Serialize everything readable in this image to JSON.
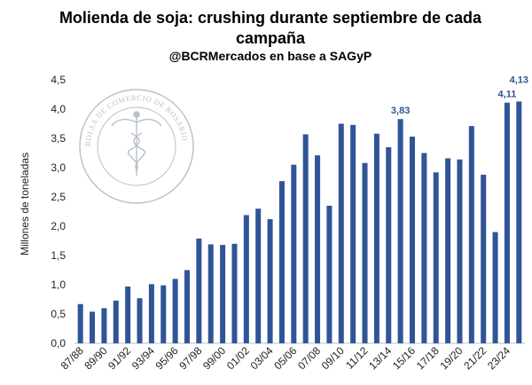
{
  "chart_data": {
    "type": "bar",
    "title_lines": [
      "Molienda de soja: crushing durante septiembre de cada",
      "campaña"
    ],
    "subtitle": "@BCRMercados en base a SAGyP",
    "ylabel": "Millones de toneladas",
    "ylim": [
      0,
      4.5
    ],
    "yticks": [
      "0,0",
      "0,5",
      "1,0",
      "1,5",
      "2,0",
      "2,5",
      "3,0",
      "3,5",
      "4,0",
      "4,5"
    ],
    "bar_color": "#2f5597",
    "categories": [
      "87/88",
      "88/89",
      "89/90",
      "90/91",
      "91/92",
      "92/93",
      "93/94",
      "94/95",
      "95/96",
      "96/97",
      "97/98",
      "98/99",
      "99/00",
      "00/01",
      "01/02",
      "02/03",
      "03/04",
      "04/05",
      "05/06",
      "06/07",
      "07/08",
      "08/09",
      "09/10",
      "10/11",
      "11/12",
      "12/13",
      "13/14",
      "14/15",
      "15/16",
      "16/17",
      "17/18",
      "18/19",
      "19/20",
      "20/21",
      "21/22",
      "22/23",
      "23/24",
      "24/25"
    ],
    "values": [
      0.67,
      0.54,
      0.6,
      0.73,
      0.97,
      0.77,
      1.01,
      0.99,
      1.1,
      1.25,
      1.79,
      1.69,
      1.68,
      1.7,
      2.19,
      2.3,
      2.12,
      2.77,
      3.05,
      3.57,
      3.21,
      2.35,
      3.75,
      3.73,
      3.08,
      3.58,
      3.35,
      3.83,
      3.53,
      3.25,
      2.92,
      3.16,
      3.14,
      3.71,
      2.88,
      1.9,
      4.11,
      4.13
    ],
    "xtick_labels": [
      "87/88",
      "89/90",
      "91/92",
      "93/94",
      "95/96",
      "97/98",
      "99/00",
      "01/02",
      "03/04",
      "05/06",
      "07/08",
      "09/10",
      "11/12",
      "13/14",
      "15/16",
      "17/18",
      "19/20",
      "21/22",
      "23/24"
    ],
    "data_labels": [
      {
        "category": "14/15",
        "text": "3,83"
      },
      {
        "category": "23/24",
        "text": "4,11"
      },
      {
        "category": "24/25",
        "text": "4,13"
      }
    ],
    "grid": false
  },
  "watermark": {
    "text": "BOLSA DE COMERCIO DE ROSARIO",
    "icon": "caduceus-seal-icon"
  }
}
